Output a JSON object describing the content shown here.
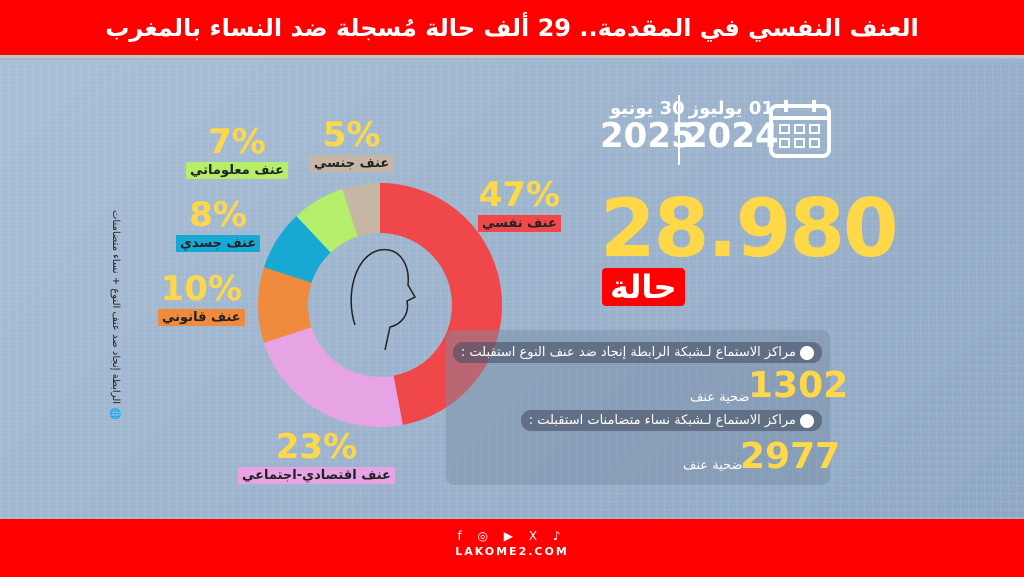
{
  "header": {
    "title": "العنف النفسي في المقدمة.. 29 ألف حالة مُسجلة ضد النساء بالمغرب"
  },
  "dates": {
    "from_day": "01 يوليوز",
    "from_year": "2024",
    "to_day": "30 يونيو",
    "to_year": "2025"
  },
  "total": {
    "value": "28.980",
    "unit": "حالة"
  },
  "source": "الرابطة إنجاد ضد عنف النوع + نساء متضامنات",
  "centers": [
    {
      "label": "مراكز الاستماع لـشبكة الرابطة إنجاد ضد عنف النوع استقبلت :",
      "value": "1302",
      "unit": "ضحية عنف"
    },
    {
      "label": "مراكز الاستماع لـشبكة نساء متضامنات استقبلت :",
      "value": "2977",
      "unit": "ضحية عنف"
    }
  ],
  "chart_data": {
    "type": "pie",
    "donut": true,
    "title": "",
    "categories": [
      "عنف نفسي",
      "عنف اقتصادي-اجتماعي",
      "عنف قانوني",
      "عنف جسدي",
      "عنف معلوماتي",
      "عنف جنسي"
    ],
    "values": [
      47,
      23,
      10,
      8,
      7,
      5
    ],
    "labels": [
      "47%",
      "23%",
      "10%",
      "8%",
      "7%",
      "5%"
    ],
    "colors": [
      "#f0474b",
      "#e6a4e4",
      "#f08a3c",
      "#17a8d3",
      "#b5ee6a",
      "#c6b6a6"
    ]
  },
  "footer": {
    "social": "f ◎ ▶ X ♪",
    "site": "LAKOME2.COM"
  }
}
